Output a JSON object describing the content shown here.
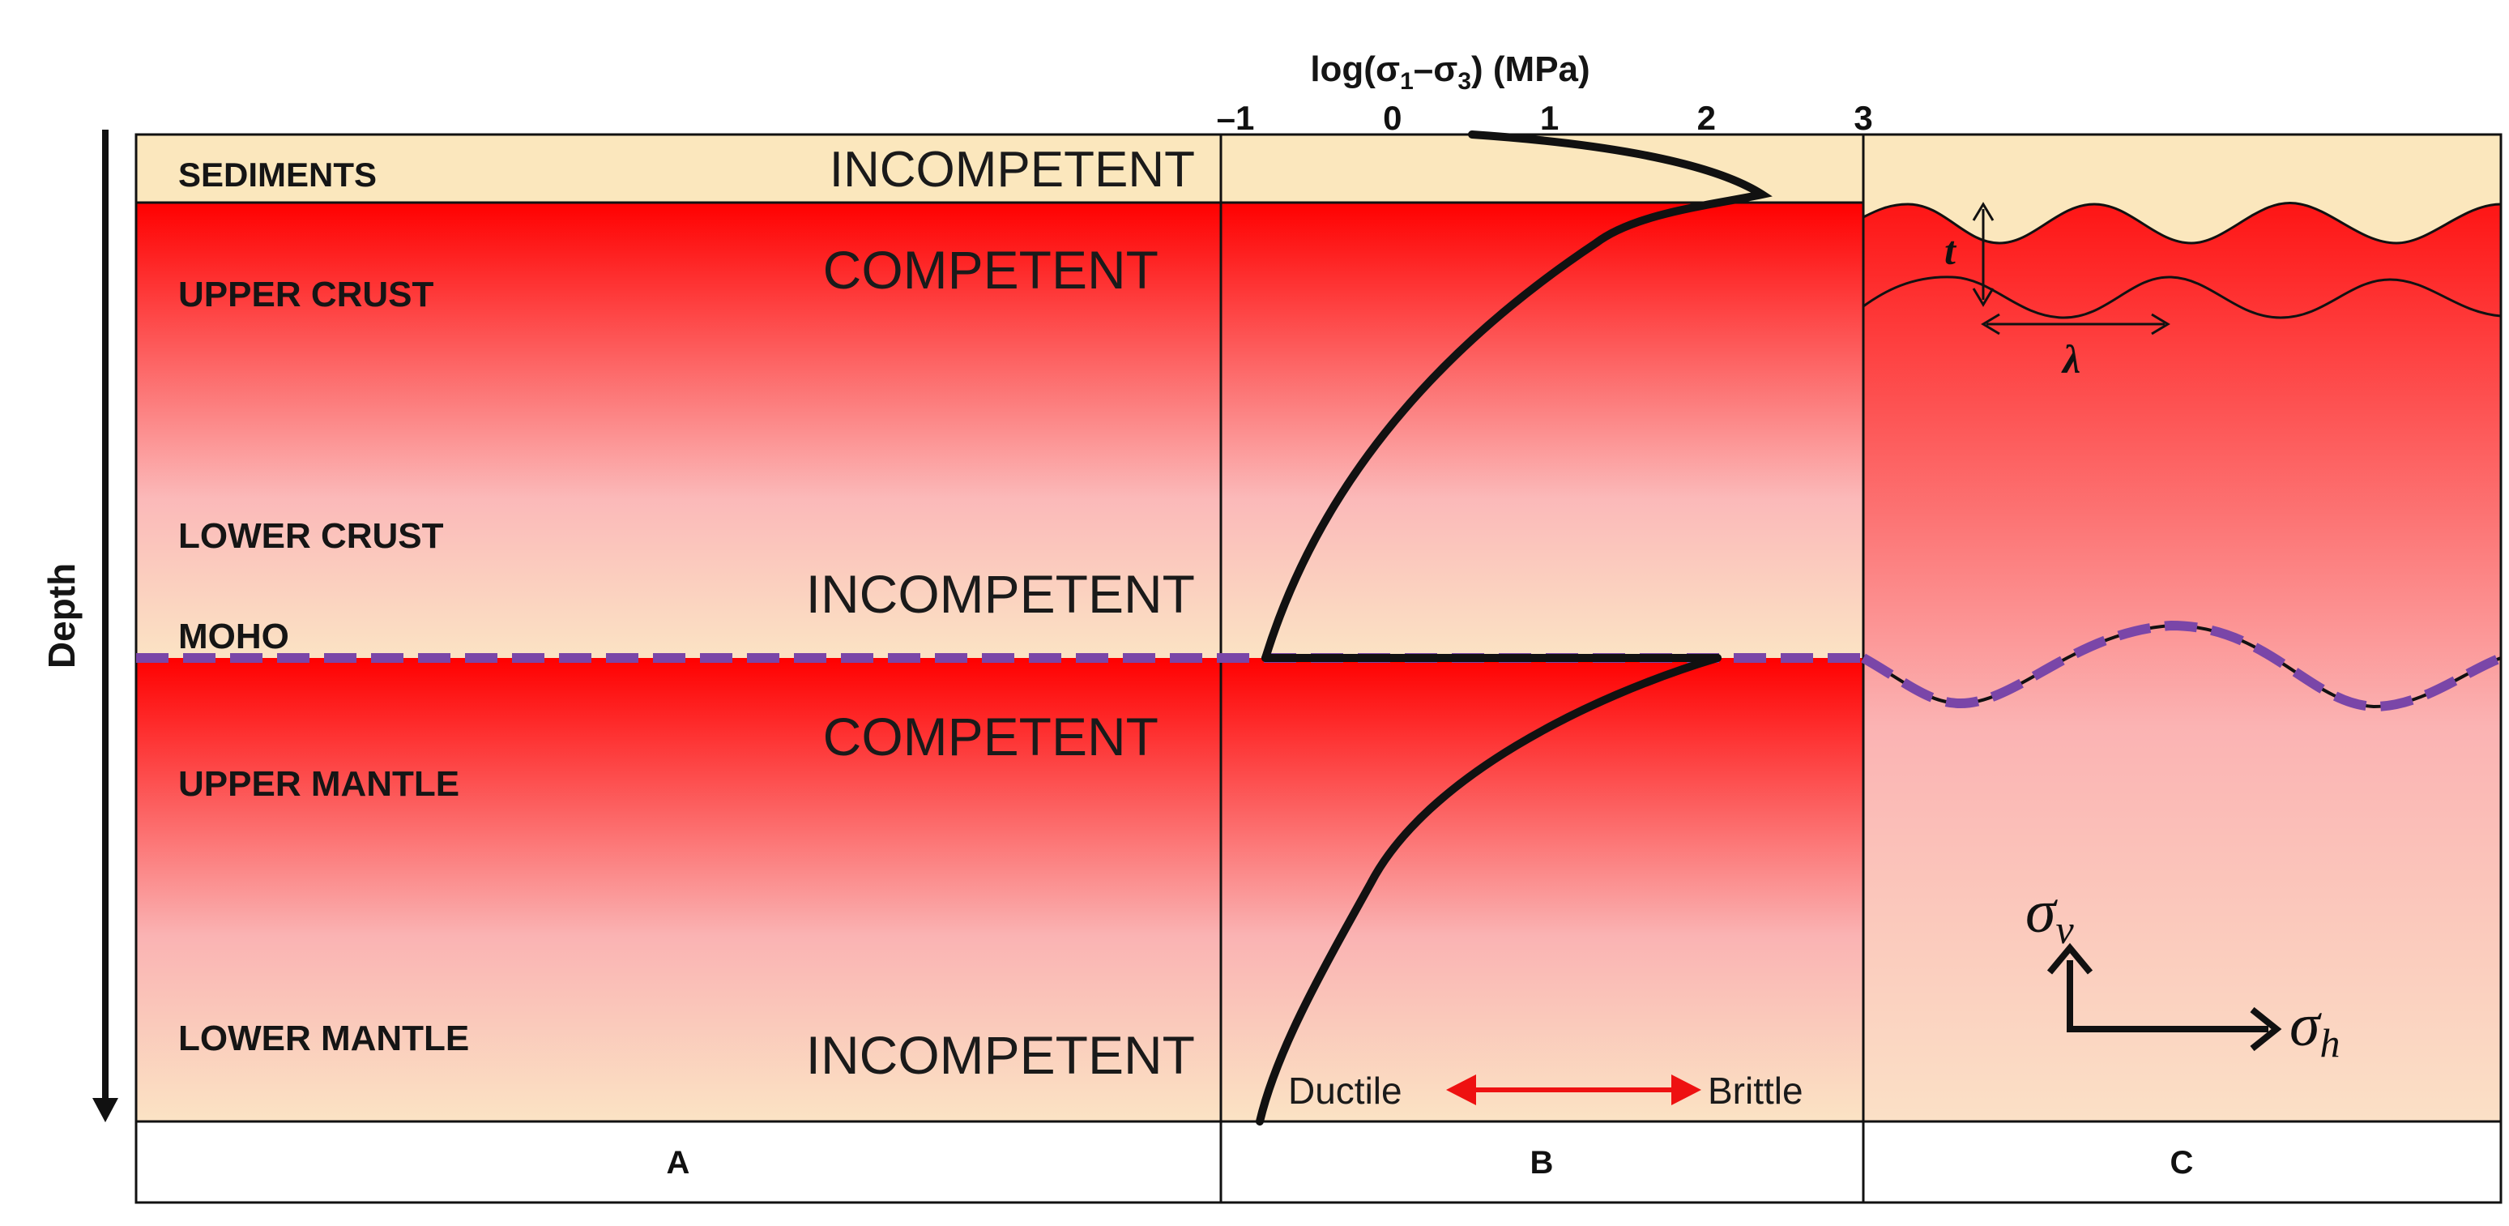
{
  "axis": {
    "title_prefix": "log(σ",
    "sub1": "1",
    "minus": "–σ",
    "sub3": "3",
    "title_suffix": ")  (MPa)",
    "ticks": [
      "–1",
      "0",
      "1",
      "2",
      "3"
    ]
  },
  "layers": {
    "sediments": "SEDIMENTS",
    "upper_crust": "UPPER CRUST",
    "lower_crust": "LOWER CRUST",
    "moho": "MOHO",
    "upper_mantle": "UPPER MANTLE",
    "lower_mantle": "LOWER MANTLE"
  },
  "competence": {
    "sediments": "INCOMPETENT",
    "upper_crust": "COMPETENT",
    "lower_crust": "INCOMPETENT",
    "upper_mantle": "COMPETENT",
    "lower_mantle": "INCOMPETENT"
  },
  "depth_label": "Depth",
  "ductile_label": "Ductile",
  "brittle_label": "Brittle",
  "panel_c": {
    "thickness_symbol": "t",
    "wavelength_symbol": "λ",
    "sigma": "σ",
    "sub_v": "v",
    "sub_h": "h"
  },
  "panels": [
    "A",
    "B",
    "C"
  ],
  "colors": {
    "competent_top": "#ff0000",
    "incompetent": "#fbe7bd",
    "moho_dash": "#7a46a8",
    "arrow_red": "#ee1111",
    "curve": "#111111"
  }
}
